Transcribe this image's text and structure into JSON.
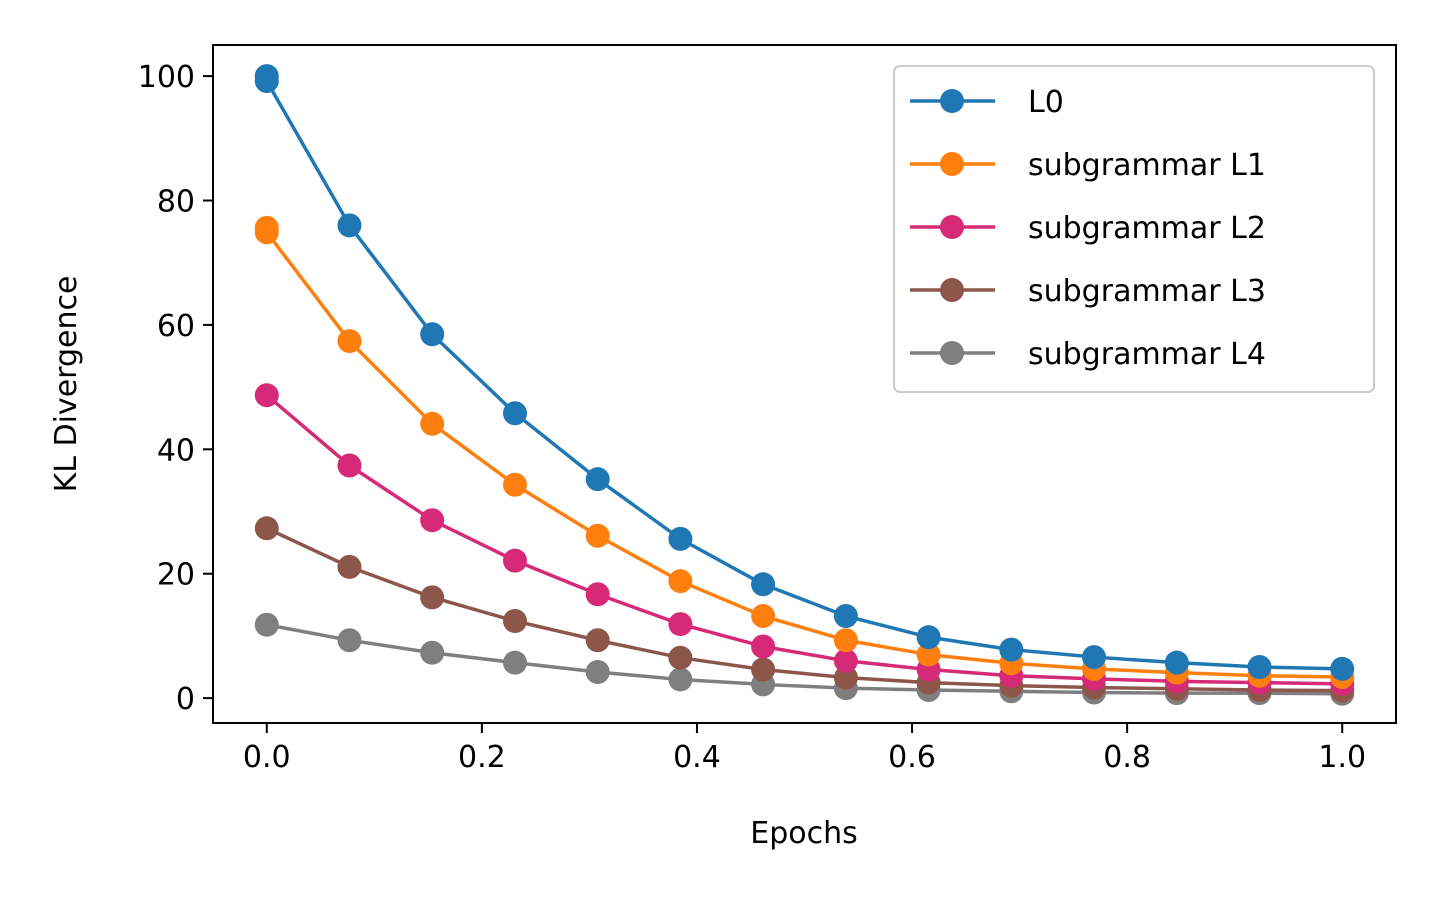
{
  "chart_data": {
    "type": "line",
    "title": "",
    "xlabel": "Epochs",
    "ylabel": "KL Divergence",
    "xlim": [
      -0.05,
      1.05
    ],
    "ylim": [
      -4,
      105
    ],
    "xticks": [
      0.0,
      0.2,
      0.4,
      0.6,
      0.8,
      1.0
    ],
    "xtick_labels": [
      "0.0",
      "0.2",
      "0.4",
      "0.6",
      "0.8",
      "1.0"
    ],
    "yticks": [
      0,
      20,
      40,
      60,
      80,
      100
    ],
    "ytick_labels": [
      "0",
      "20",
      "40",
      "60",
      "80",
      "100"
    ],
    "grid": false,
    "legend_position": "top-right",
    "x": [
      0.0,
      0.0769,
      0.1538,
      0.2308,
      0.3077,
      0.3846,
      0.4615,
      0.5385,
      0.6154,
      0.6923,
      0.7692,
      0.8462,
      0.9231,
      1.0
    ],
    "series": [
      {
        "name": "L0",
        "color": "#1f77b4",
        "extra_x": [
          0.0
        ],
        "extra_y": [
          100.0
        ],
        "values": [
          99.2,
          76.0,
          58.5,
          45.8,
          35.2,
          25.6,
          18.3,
          13.2,
          9.8,
          7.8,
          6.6,
          5.7,
          5.0,
          4.7
        ]
      },
      {
        "name": "subgrammar L1",
        "color": "#ff7f0e",
        "extra_x": [
          0.0
        ],
        "extra_y": [
          75.6
        ],
        "values": [
          74.9,
          57.4,
          44.1,
          34.3,
          26.1,
          18.8,
          13.2,
          9.3,
          7.0,
          5.6,
          4.7,
          4.1,
          3.6,
          3.4
        ]
      },
      {
        "name": "subgrammar L2",
        "color": "#d62a78",
        "values": [
          48.7,
          37.4,
          28.6,
          22.1,
          16.7,
          11.9,
          8.3,
          6.0,
          4.6,
          3.6,
          3.1,
          2.7,
          2.5,
          2.3
        ]
      },
      {
        "name": "subgrammar L3",
        "color": "#8c564b",
        "values": [
          27.3,
          21.1,
          16.2,
          12.4,
          9.3,
          6.5,
          4.6,
          3.3,
          2.5,
          2.0,
          1.7,
          1.5,
          1.3,
          1.2
        ]
      },
      {
        "name": "subgrammar L4",
        "color": "#7f7f7f",
        "values": [
          11.8,
          9.3,
          7.3,
          5.7,
          4.2,
          3.0,
          2.2,
          1.6,
          1.3,
          1.1,
          0.9,
          0.8,
          0.8,
          0.7
        ]
      }
    ]
  }
}
